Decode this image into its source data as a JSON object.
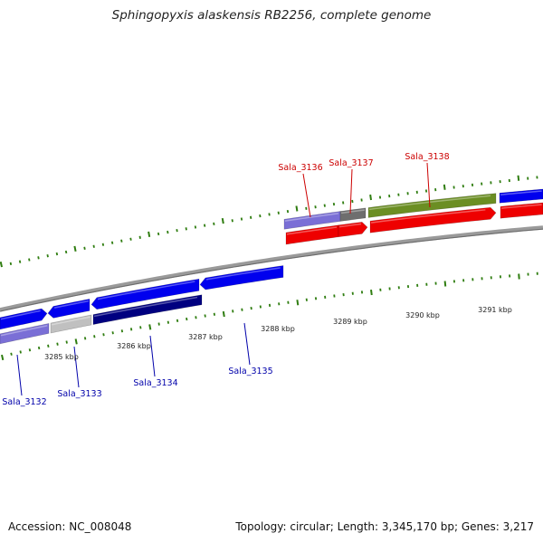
{
  "title": "Sphingopyxis alaskensis RB2256, complete genome",
  "footer": {
    "accession": "Accession: NC_008048",
    "stats": "Topology: circular; Length: 3,345,170 bp; Genes: 3,217"
  },
  "colors": {
    "backbone": "#888888",
    "tick_major": "#2f7d10",
    "tick_minor": "#2f7d10",
    "forward_label": "#cc0000",
    "reverse_label": "#0000aa",
    "gene_blue": "#0000ee",
    "gene_dark_navy": "#000080",
    "gene_lavender": "#7a6fd6",
    "gene_gray": "#c0c0c0",
    "gene_dark_gray": "#6e6e6e",
    "gene_olive": "#6b8e23",
    "gene_red": "#ee0000"
  },
  "scale_labels": [
    "3285 kbp",
    "3286 kbp",
    "3287 kbp",
    "3288 kbp",
    "3289 kbp",
    "3290 kbp",
    "3291 kbp"
  ],
  "forward_gene_labels": [
    "Sala_3136",
    "Sala_3137",
    "Sala_3138"
  ],
  "reverse_gene_labels": [
    "Sala_3132",
    "Sala_3133",
    "Sala_3134",
    "Sala_3135"
  ]
}
